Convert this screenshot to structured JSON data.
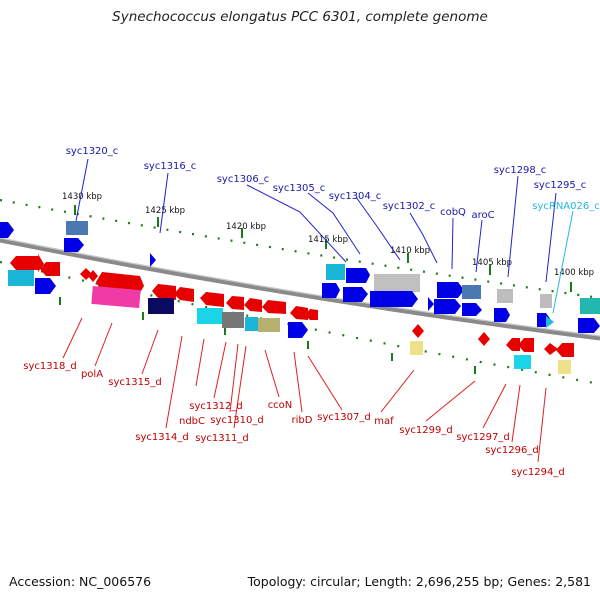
{
  "title": "Synechococcus elongatus PCC 6301, complete genome",
  "footer": {
    "accession": "Accession: NC_006576",
    "topology": "Topology: circular; Length: 2,696,255 bp; Genes: 2,581"
  },
  "colors": {
    "forward_gene": "#0000e6",
    "reverse_gene": "#e60000",
    "forward_label": "#1a1aa8",
    "reverse_label": "#c00000",
    "rna_label": "#22b8e0",
    "backbone": "#888888",
    "tick": "#1a7a1a"
  },
  "ruler": [
    "1430 kbp",
    "1425 kbp",
    "1420 kbp",
    "1415 kbp",
    "1410 kbp",
    "1405 kbp",
    "1400 kbp"
  ],
  "labels": {
    "forward": [
      "syc1320_c",
      "syc1316_c",
      "syc1306_c",
      "syc1305_c",
      "syc1304_c",
      "syc1302_c",
      "cobQ",
      "aroC",
      "syc1298_c",
      "syc1295_c"
    ],
    "rna": [
      "sycRNA026_c"
    ],
    "reverse": [
      "syc1318_d",
      "polA",
      "syc1315_d",
      "syc1314_d",
      "ndbC",
      "syc1312_d",
      "syc1310_d",
      "syc1311_d",
      "ccoN",
      "ribD",
      "syc1307_d",
      "maf",
      "syc1299_d",
      "syc1297_d",
      "syc1296_d",
      "syc1294_d"
    ]
  }
}
